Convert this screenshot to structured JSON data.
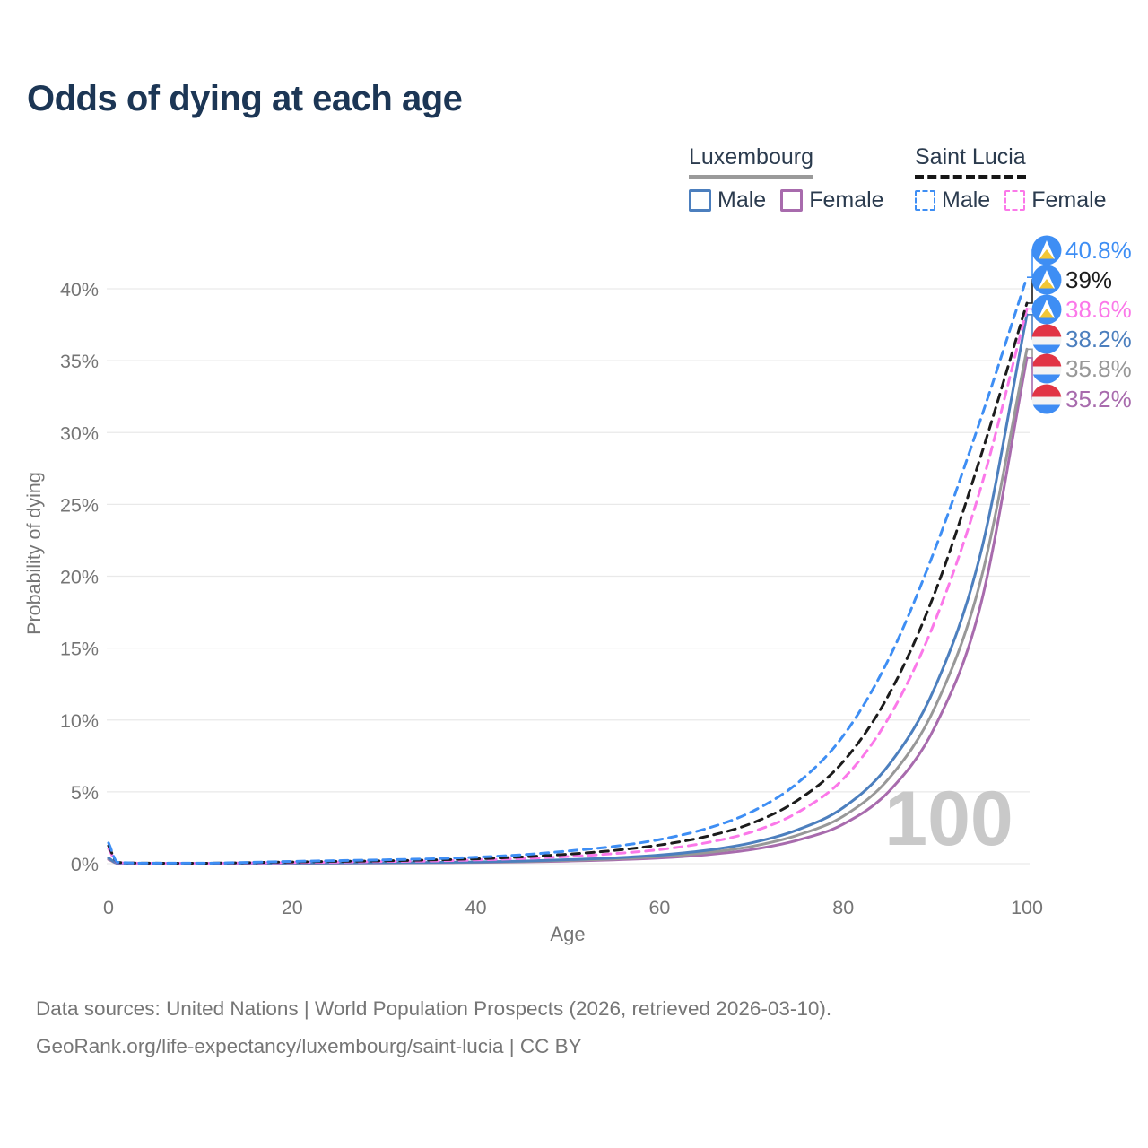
{
  "title": "Odds of dying at each age",
  "legend": {
    "luxembourg": {
      "name": "Luxembourg",
      "male_label": "Male",
      "female_label": "Female"
    },
    "saint_lucia": {
      "name": "Saint Lucia",
      "male_label": "Male",
      "female_label": "Female"
    }
  },
  "watermark_age": "100",
  "footer": {
    "line1": "Data sources: United Nations | World Population Prospects (2026, retrieved 2026-03-10).",
    "line2": "GeoRank.org/life-expectancy/luxembourg/saint-lucia | CC BY"
  },
  "colors": {
    "title_text": "#1c3655",
    "legend_text": "#2b3b4e",
    "axis_text": "#757575",
    "gridline": "#e9e9e9",
    "footer_text": "#767676",
    "watermark": "#c9c9c9",
    "luxembourg_underline": "#9a9a9a",
    "saint_lucia_underline": "#161616",
    "flag_lux_red": "#e13445",
    "flag_lux_white": "#f3f3f3",
    "flag_lux_blue": "#3f8cf3",
    "flag_slc_blue": "#3e8ef4",
    "flag_slc_yellow": "#f2c735"
  },
  "chart_data": {
    "type": "line",
    "title": "Odds of dying at each age",
    "xlabel": "Age",
    "ylabel": "Probability of dying",
    "x_ticks": [
      0,
      20,
      40,
      60,
      80,
      100
    ],
    "y_tick_labels": [
      "0%",
      "5%",
      "10%",
      "15%",
      "20%",
      "25%",
      "30%",
      "35%",
      "40%"
    ],
    "y_tick_values": [
      0,
      5,
      10,
      15,
      20,
      25,
      30,
      35,
      40
    ],
    "xlim": [
      0,
      100
    ],
    "ylim": [
      0,
      43
    ],
    "grid": "horizontal-only",
    "legend_position": "top-right",
    "ages": [
      0,
      1,
      5,
      10,
      15,
      20,
      25,
      30,
      35,
      40,
      45,
      50,
      55,
      60,
      65,
      70,
      75,
      80,
      85,
      90,
      95,
      100
    ],
    "series": [
      {
        "id": "saint-lucia-male",
        "country": "Saint Lucia",
        "sex": "Male",
        "color": "#3e8ef4",
        "dash": true,
        "flag": "saint-lucia",
        "end_label": "40.8%",
        "values": [
          1.45,
          0.1,
          0.04,
          0.04,
          0.09,
          0.16,
          0.21,
          0.27,
          0.34,
          0.45,
          0.62,
          0.88,
          1.2,
          1.68,
          2.42,
          3.6,
          5.6,
          8.9,
          14.3,
          21.9,
          31.0,
          40.8
        ]
      },
      {
        "id": "saint-lucia-both",
        "country": "Saint Lucia",
        "sex": "Both sexes",
        "color": "#1c1c1c",
        "dash": true,
        "flag": "saint-lucia",
        "end_label": "39%",
        "values": [
          1.25,
          0.085,
          0.035,
          0.03,
          0.07,
          0.12,
          0.16,
          0.2,
          0.26,
          0.34,
          0.47,
          0.66,
          0.92,
          1.3,
          1.88,
          2.8,
          4.4,
          7.1,
          11.8,
          18.9,
          28.4,
          39.0
        ]
      },
      {
        "id": "saint-lucia-female",
        "country": "Saint Lucia",
        "sex": "Female",
        "color": "#fb78e9",
        "dash": true,
        "flag": "saint-lucia",
        "end_label": "38.6%",
        "values": [
          1.05,
          0.07,
          0.03,
          0.025,
          0.05,
          0.08,
          0.11,
          0.15,
          0.19,
          0.26,
          0.36,
          0.5,
          0.7,
          0.98,
          1.45,
          2.2,
          3.55,
          5.9,
          10.2,
          16.9,
          26.2,
          38.6
        ]
      },
      {
        "id": "luxembourg-male",
        "country": "Luxembourg",
        "sex": "Male",
        "color": "#4c7fbe",
        "dash": false,
        "flag": "luxembourg",
        "end_label": "38.2%",
        "values": [
          0.4,
          0.03,
          0.01,
          0.01,
          0.03,
          0.05,
          0.06,
          0.07,
          0.09,
          0.12,
          0.18,
          0.28,
          0.4,
          0.6,
          0.92,
          1.45,
          2.35,
          3.9,
          6.9,
          12.3,
          21.7,
          38.2
        ]
      },
      {
        "id": "luxembourg-both",
        "country": "Luxembourg",
        "sex": "Both sexes",
        "color": "#989898",
        "dash": false,
        "flag": "luxembourg",
        "end_label": "35.8%",
        "values": [
          0.35,
          0.025,
          0.009,
          0.009,
          0.025,
          0.04,
          0.05,
          0.06,
          0.075,
          0.1,
          0.15,
          0.23,
          0.33,
          0.49,
          0.76,
          1.2,
          1.98,
          3.3,
          5.95,
          10.9,
          19.8,
          35.8
        ]
      },
      {
        "id": "luxembourg-female",
        "country": "Luxembourg",
        "sex": "Female",
        "color": "#a86bad",
        "dash": false,
        "flag": "luxembourg",
        "end_label": "35.2%",
        "values": [
          0.3,
          0.02,
          0.008,
          0.008,
          0.02,
          0.03,
          0.04,
          0.05,
          0.06,
          0.085,
          0.125,
          0.18,
          0.27,
          0.4,
          0.62,
          0.98,
          1.63,
          2.75,
          5.05,
          9.55,
          18.1,
          35.2
        ]
      }
    ]
  }
}
